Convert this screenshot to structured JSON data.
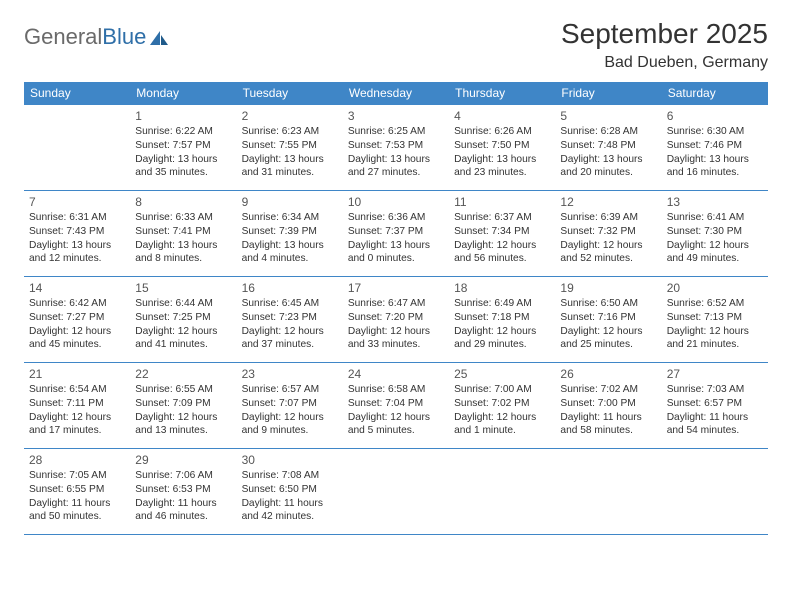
{
  "logo": {
    "text1": "General",
    "text2": "Blue"
  },
  "title": "September 2025",
  "location": "Bad Dueben, Germany",
  "colors": {
    "header_bg": "#3f86c7",
    "header_text": "#ffffff",
    "border": "#3f86c7",
    "body_text": "#333333",
    "logo_gray": "#6a6a6a",
    "logo_blue": "#2f6fa8",
    "background": "#ffffff"
  },
  "day_headers": [
    "Sunday",
    "Monday",
    "Tuesday",
    "Wednesday",
    "Thursday",
    "Friday",
    "Saturday"
  ],
  "weeks": [
    [
      null,
      {
        "n": "1",
        "sr": "6:22 AM",
        "ss": "7:57 PM",
        "dl": "13 hours and 35 minutes."
      },
      {
        "n": "2",
        "sr": "6:23 AM",
        "ss": "7:55 PM",
        "dl": "13 hours and 31 minutes."
      },
      {
        "n": "3",
        "sr": "6:25 AM",
        "ss": "7:53 PM",
        "dl": "13 hours and 27 minutes."
      },
      {
        "n": "4",
        "sr": "6:26 AM",
        "ss": "7:50 PM",
        "dl": "13 hours and 23 minutes."
      },
      {
        "n": "5",
        "sr": "6:28 AM",
        "ss": "7:48 PM",
        "dl": "13 hours and 20 minutes."
      },
      {
        "n": "6",
        "sr": "6:30 AM",
        "ss": "7:46 PM",
        "dl": "13 hours and 16 minutes."
      }
    ],
    [
      {
        "n": "7",
        "sr": "6:31 AM",
        "ss": "7:43 PM",
        "dl": "13 hours and 12 minutes."
      },
      {
        "n": "8",
        "sr": "6:33 AM",
        "ss": "7:41 PM",
        "dl": "13 hours and 8 minutes."
      },
      {
        "n": "9",
        "sr": "6:34 AM",
        "ss": "7:39 PM",
        "dl": "13 hours and 4 minutes."
      },
      {
        "n": "10",
        "sr": "6:36 AM",
        "ss": "7:37 PM",
        "dl": "13 hours and 0 minutes."
      },
      {
        "n": "11",
        "sr": "6:37 AM",
        "ss": "7:34 PM",
        "dl": "12 hours and 56 minutes."
      },
      {
        "n": "12",
        "sr": "6:39 AM",
        "ss": "7:32 PM",
        "dl": "12 hours and 52 minutes."
      },
      {
        "n": "13",
        "sr": "6:41 AM",
        "ss": "7:30 PM",
        "dl": "12 hours and 49 minutes."
      }
    ],
    [
      {
        "n": "14",
        "sr": "6:42 AM",
        "ss": "7:27 PM",
        "dl": "12 hours and 45 minutes."
      },
      {
        "n": "15",
        "sr": "6:44 AM",
        "ss": "7:25 PM",
        "dl": "12 hours and 41 minutes."
      },
      {
        "n": "16",
        "sr": "6:45 AM",
        "ss": "7:23 PM",
        "dl": "12 hours and 37 minutes."
      },
      {
        "n": "17",
        "sr": "6:47 AM",
        "ss": "7:20 PM",
        "dl": "12 hours and 33 minutes."
      },
      {
        "n": "18",
        "sr": "6:49 AM",
        "ss": "7:18 PM",
        "dl": "12 hours and 29 minutes."
      },
      {
        "n": "19",
        "sr": "6:50 AM",
        "ss": "7:16 PM",
        "dl": "12 hours and 25 minutes."
      },
      {
        "n": "20",
        "sr": "6:52 AM",
        "ss": "7:13 PM",
        "dl": "12 hours and 21 minutes."
      }
    ],
    [
      {
        "n": "21",
        "sr": "6:54 AM",
        "ss": "7:11 PM",
        "dl": "12 hours and 17 minutes."
      },
      {
        "n": "22",
        "sr": "6:55 AM",
        "ss": "7:09 PM",
        "dl": "12 hours and 13 minutes."
      },
      {
        "n": "23",
        "sr": "6:57 AM",
        "ss": "7:07 PM",
        "dl": "12 hours and 9 minutes."
      },
      {
        "n": "24",
        "sr": "6:58 AM",
        "ss": "7:04 PM",
        "dl": "12 hours and 5 minutes."
      },
      {
        "n": "25",
        "sr": "7:00 AM",
        "ss": "7:02 PM",
        "dl": "12 hours and 1 minute."
      },
      {
        "n": "26",
        "sr": "7:02 AM",
        "ss": "7:00 PM",
        "dl": "11 hours and 58 minutes."
      },
      {
        "n": "27",
        "sr": "7:03 AM",
        "ss": "6:57 PM",
        "dl": "11 hours and 54 minutes."
      }
    ],
    [
      {
        "n": "28",
        "sr": "7:05 AM",
        "ss": "6:55 PM",
        "dl": "11 hours and 50 minutes."
      },
      {
        "n": "29",
        "sr": "7:06 AM",
        "ss": "6:53 PM",
        "dl": "11 hours and 46 minutes."
      },
      {
        "n": "30",
        "sr": "7:08 AM",
        "ss": "6:50 PM",
        "dl": "11 hours and 42 minutes."
      },
      null,
      null,
      null,
      null
    ]
  ],
  "labels": {
    "sunrise": "Sunrise: ",
    "sunset": "Sunset: ",
    "daylight": "Daylight: "
  }
}
